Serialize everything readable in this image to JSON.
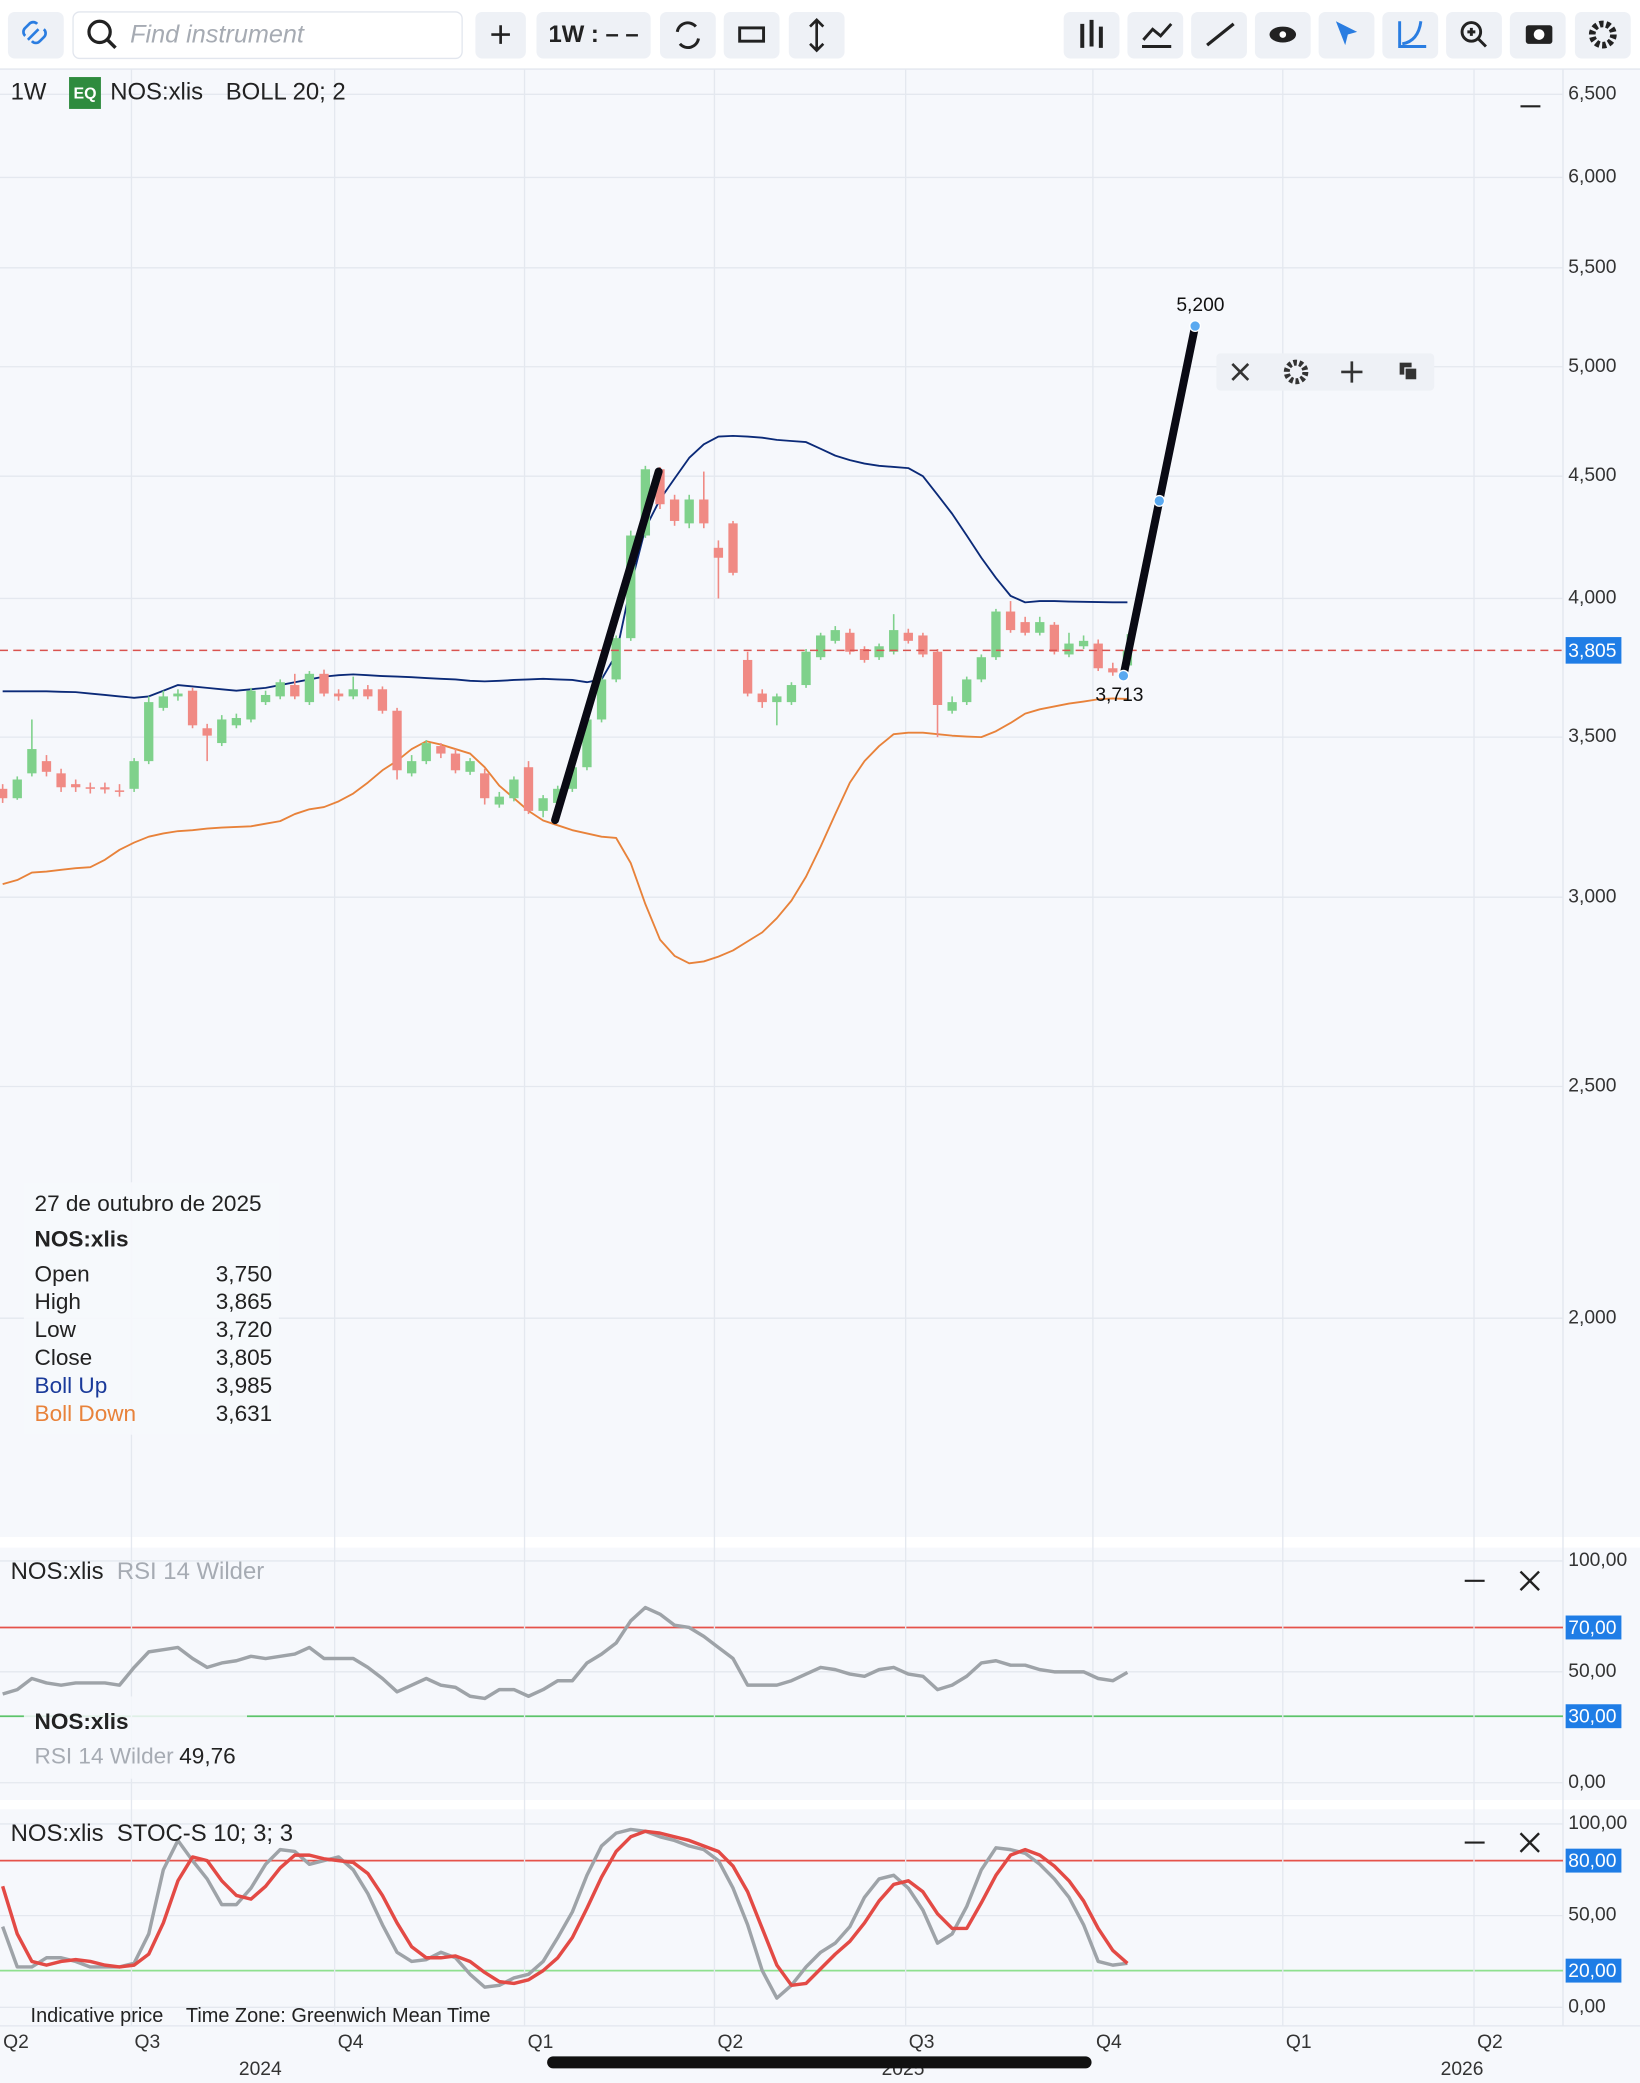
{
  "toolbar": {
    "search_placeholder": "Find instrument",
    "interval": "1W : – –"
  },
  "chart_data": [
    {
      "type": "candlestick",
      "interval": "1W",
      "badge": "EQ",
      "symbol": "NOS:xlis",
      "indicator": "BOLL 20; 2",
      "log_scale": true,
      "grid": true,
      "ylim": [
        1620,
        6660
      ],
      "yticks": [
        {
          "value": 2000,
          "label": "2,000"
        },
        {
          "value": 2500,
          "label": "2,500"
        },
        {
          "value": 3000,
          "label": "3,000"
        },
        {
          "value": 3500,
          "label": "3,500"
        },
        {
          "value": 4000,
          "label": "4,000"
        },
        {
          "value": 4500,
          "label": "4,500"
        },
        {
          "value": 5000,
          "label": "5,000"
        },
        {
          "value": 5500,
          "label": "5,500"
        },
        {
          "value": 6000,
          "label": "6,000"
        },
        {
          "value": 6500,
          "label": "6,500"
        }
      ],
      "up_color": "#7fd18b",
      "down_color": "#f08a84",
      "candles": {
        "open": [
          3330,
          3300,
          3380,
          3420,
          3380,
          3345,
          3335,
          3335,
          3325,
          3330,
          3420,
          3600,
          3640,
          3660,
          3530,
          3480,
          3540,
          3560,
          3620,
          3640,
          3680,
          3620,
          3720,
          3650,
          3640,
          3665,
          3665,
          3590,
          3380,
          3420,
          3470,
          3445,
          3385,
          3380,
          3280,
          3300,
          3400,
          3260,
          3285,
          3330,
          3400,
          3560,
          3700,
          3850,
          4250,
          4530,
          4400,
          4300,
          4400,
          4200,
          4300,
          3770,
          3650,
          3620,
          3620,
          3680,
          3780,
          3840,
          3870,
          3810,
          3780,
          3800,
          3870,
          3860,
          3800,
          3590,
          3620,
          3700,
          3780,
          3950,
          3910,
          3870,
          3900,
          3790,
          3820,
          3830,
          3740,
          3750
        ],
        "high": [
          3345,
          3370,
          3560,
          3440,
          3395,
          3360,
          3350,
          3350,
          3345,
          3430,
          3640,
          3660,
          3665,
          3670,
          3545,
          3575,
          3580,
          3670,
          3660,
          3700,
          3720,
          3730,
          3735,
          3665,
          3710,
          3680,
          3675,
          3600,
          3440,
          3490,
          3480,
          3460,
          3430,
          3395,
          3320,
          3370,
          3420,
          3310,
          3340,
          3410,
          3570,
          3710,
          3860,
          4270,
          4545,
          4540,
          4420,
          4420,
          4520,
          4230,
          4310,
          3800,
          3665,
          3650,
          3690,
          3810,
          3870,
          3895,
          3885,
          3820,
          3830,
          3940,
          3885,
          3870,
          3810,
          3640,
          3710,
          3790,
          3960,
          3990,
          3930,
          3930,
          3910,
          3870,
          3860,
          3845,
          3760,
          3865
        ],
        "low": [
          3285,
          3295,
          3370,
          3370,
          3320,
          3320,
          3315,
          3315,
          3305,
          3320,
          3410,
          3590,
          3625,
          3530,
          3420,
          3470,
          3530,
          3550,
          3610,
          3630,
          3630,
          3610,
          3640,
          3625,
          3630,
          3630,
          3580,
          3360,
          3370,
          3410,
          3430,
          3380,
          3375,
          3280,
          3270,
          3290,
          3250,
          3240,
          3275,
          3320,
          3390,
          3550,
          3690,
          3840,
          4240,
          4360,
          4290,
          4280,
          4280,
          4000,
          4090,
          3640,
          3600,
          3540,
          3610,
          3670,
          3770,
          3830,
          3790,
          3760,
          3770,
          3790,
          3830,
          3780,
          3500,
          3580,
          3610,
          3690,
          3770,
          3870,
          3860,
          3860,
          3790,
          3780,
          3810,
          3730,
          3713,
          3720
        ],
        "close": [
          3300,
          3360,
          3460,
          3385,
          3335,
          3335,
          3330,
          3328,
          3320,
          3420,
          3620,
          3640,
          3650,
          3540,
          3505,
          3560,
          3565,
          3660,
          3645,
          3690,
          3640,
          3720,
          3650,
          3640,
          3665,
          3640,
          3590,
          3390,
          3420,
          3480,
          3445,
          3390,
          3420,
          3300,
          3305,
          3360,
          3260,
          3300,
          3330,
          3400,
          3560,
          3700,
          3850,
          4250,
          4530,
          4380,
          4310,
          4400,
          4300,
          4160,
          4100,
          3650,
          3620,
          3640,
          3680,
          3800,
          3860,
          3880,
          3800,
          3770,
          3820,
          3880,
          3840,
          3790,
          3610,
          3620,
          3700,
          3780,
          3950,
          3880,
          3870,
          3910,
          3800,
          3830,
          3840,
          3740,
          3725,
          3805
        ]
      },
      "series": [
        {
          "name": "Boll Up",
          "color": "#0b2a78",
          "values": [
            3658,
            3658,
            3658,
            3658,
            3656,
            3655,
            3650,
            3645,
            3640,
            3635,
            3640,
            3660,
            3680,
            3675,
            3670,
            3665,
            3660,
            3665,
            3670,
            3680,
            3690,
            3700,
            3710,
            3715,
            3718,
            3715,
            3712,
            3710,
            3708,
            3705,
            3702,
            3700,
            3695,
            3693,
            3695,
            3698,
            3700,
            3702,
            3700,
            3698,
            3690,
            3700,
            3790,
            4050,
            4280,
            4400,
            4490,
            4580,
            4640,
            4675,
            4678,
            4675,
            4670,
            4660,
            4655,
            4650,
            4620,
            4590,
            4570,
            4555,
            4545,
            4540,
            4535,
            4500,
            4420,
            4340,
            4250,
            4160,
            4080,
            4010,
            3985,
            3990,
            3990,
            3988,
            3987,
            3986,
            3985,
            3985
          ]
        },
        {
          "name": "Boll Down",
          "color": "#e8823a",
          "values": [
            3038,
            3050,
            3072,
            3075,
            3080,
            3085,
            3088,
            3110,
            3140,
            3162,
            3180,
            3190,
            3197,
            3200,
            3205,
            3208,
            3210,
            3212,
            3220,
            3228,
            3250,
            3265,
            3272,
            3290,
            3315,
            3350,
            3390,
            3421,
            3460,
            3486,
            3475,
            3460,
            3445,
            3400,
            3340,
            3300,
            3260,
            3230,
            3215,
            3200,
            3190,
            3180,
            3176,
            3100,
            2980,
            2880,
            2835,
            2815,
            2820,
            2833,
            2850,
            2875,
            2900,
            2940,
            2990,
            3060,
            3150,
            3250,
            3350,
            3420,
            3470,
            3510,
            3515,
            3515,
            3510,
            3505,
            3502,
            3500,
            3520,
            3548,
            3580,
            3595,
            3605,
            3615,
            3622,
            3630,
            3633,
            3631
          ]
        }
      ],
      "last_price": {
        "value": 3805,
        "label": "3,805"
      },
      "trend_lines": [
        {
          "start": 3231,
          "end": 4520
        },
        {
          "start": 3713,
          "end": 5200,
          "start_label": "3,713",
          "end_label": "5,200"
        }
      ],
      "tooltip": {
        "date": "27 de outubro de 2025",
        "symbol": "NOS:xlis",
        "rows": [
          {
            "name": "Open",
            "value": "3,750"
          },
          {
            "name": "High",
            "value": "3,865"
          },
          {
            "name": "Low",
            "value": "3,720"
          },
          {
            "name": "Close",
            "value": "3,805"
          },
          {
            "name": "Boll Up",
            "value": "3,985",
            "color": "#1a3a9a"
          },
          {
            "name": "Boll Down",
            "value": "3,631",
            "color": "#e8823a"
          }
        ]
      },
      "xaxis": {
        "quarters": [
          "Q2",
          "Q3",
          "Q4",
          "Q1",
          "Q2",
          "Q3",
          "Q4",
          "Q1",
          "Q2"
        ],
        "years": [
          "2024",
          "2025",
          "2026"
        ]
      }
    },
    {
      "type": "line",
      "symbol": "NOS:xlis",
      "indicator": "RSI 14 Wilder",
      "ylim": [
        0,
        100
      ],
      "yticks": [
        {
          "value": 0,
          "label": "0,00"
        },
        {
          "value": 50,
          "label": "50,00"
        },
        {
          "value": 100,
          "label": "100,00"
        }
      ],
      "levels": [
        {
          "value": 70,
          "label": "70,00",
          "color": "#e5534b"
        },
        {
          "value": 30,
          "label": "30,00",
          "color": "#5cc46a"
        }
      ],
      "series": [
        {
          "color": "#9ea3a8",
          "values": [
            40,
            42,
            47,
            45,
            44,
            45,
            45,
            45,
            44,
            52,
            59,
            60,
            61,
            56,
            52,
            54,
            55,
            57,
            56,
            57,
            58,
            61,
            56,
            56,
            56,
            52,
            47,
            41,
            44,
            47,
            44,
            43,
            39,
            38,
            42,
            42,
            39,
            42,
            46,
            46,
            54,
            58,
            63,
            73,
            79,
            76,
            71,
            70,
            66,
            61,
            56,
            44,
            44,
            44,
            46,
            49,
            52,
            51,
            49,
            48,
            51,
            52,
            49,
            48,
            42,
            44,
            48,
            54,
            55,
            53,
            53,
            51,
            50,
            50,
            50,
            47,
            46,
            49.76
          ]
        }
      ],
      "tooltip": {
        "symbol": "NOS:xlis",
        "name": "RSI 14 Wilder",
        "value": "49,76"
      }
    },
    {
      "type": "line",
      "symbol": "NOS:xlis",
      "indicator": "STOC-S 10; 3; 3",
      "ylim": [
        0,
        100
      ],
      "yticks": [
        {
          "value": 0,
          "label": "0,00"
        },
        {
          "value": 50,
          "label": "50,00"
        },
        {
          "value": 100,
          "label": "100,00"
        }
      ],
      "levels": [
        {
          "value": 80,
          "label": "80,00",
          "color": "#e5534b"
        },
        {
          "value": 20,
          "label": "20,00",
          "color": "#8fe08f"
        }
      ],
      "series": [
        {
          "color": "#9ea3a8",
          "values": [
            44,
            22,
            22,
            27,
            27,
            25,
            22,
            22,
            22,
            24,
            40,
            75,
            91,
            80,
            70,
            56,
            56,
            65,
            78,
            86,
            85,
            78,
            80,
            82,
            75,
            62,
            45,
            30,
            25,
            26,
            30,
            27,
            18,
            11,
            12,
            16,
            18,
            25,
            38,
            52,
            72,
            88,
            95,
            97,
            96,
            93,
            91,
            88,
            86,
            80,
            65,
            45,
            20,
            5,
            12,
            22,
            30,
            35,
            44,
            60,
            70,
            72,
            65,
            53,
            35,
            40,
            55,
            75,
            87,
            86,
            84,
            78,
            70,
            60,
            45,
            25,
            23,
            24
          ]
        },
        {
          "color": "#e34a45",
          "values": [
            66,
            40,
            25,
            23,
            25,
            26,
            25,
            23,
            22,
            23,
            29,
            46,
            69,
            82,
            80,
            69,
            61,
            59,
            66,
            76,
            83,
            83,
            81,
            80,
            79,
            73,
            61,
            46,
            33,
            27,
            27,
            28,
            25,
            19,
            14,
            13,
            15,
            20,
            27,
            38,
            54,
            71,
            85,
            93,
            96,
            95,
            93,
            91,
            88,
            85,
            77,
            63,
            43,
            23,
            12,
            13,
            21,
            29,
            36,
            46,
            58,
            67,
            69,
            63,
            51,
            43,
            43,
            57,
            72,
            83,
            86,
            83,
            77,
            69,
            58,
            43,
            31,
            24
          ]
        }
      ]
    }
  ],
  "footer": {
    "note": "Indicative price",
    "timezone": "Time Zone: Greenwich Mean Time"
  }
}
